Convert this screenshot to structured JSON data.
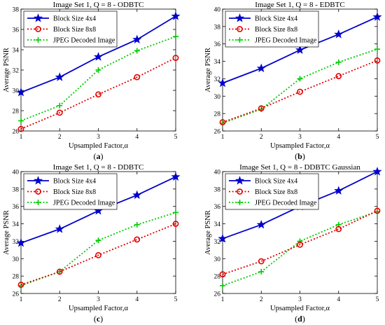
{
  "chart_data": [
    {
      "type": "line",
      "title": "Image Set 1, Q = 8 - ODBTC",
      "xlabel": "Upsampled Factor,α",
      "ylabel": "Average PSNR",
      "x": [
        1,
        2,
        3,
        4,
        5
      ],
      "xlim": [
        1,
        5
      ],
      "ylim": [
        26,
        38
      ],
      "yticks": [
        26,
        28,
        30,
        32,
        34,
        36,
        38
      ],
      "series": [
        {
          "name": "Block Size 4x4",
          "values": [
            29.8,
            31.3,
            33.3,
            35.0,
            37.3
          ]
        },
        {
          "name": "Block Size 8x8",
          "values": [
            26.2,
            27.8,
            29.6,
            31.3,
            33.2
          ]
        },
        {
          "name": "JPEG Decoded Image",
          "values": [
            27.0,
            28.5,
            32.0,
            33.9,
            35.3
          ]
        }
      ],
      "panel_label": "a"
    },
    {
      "type": "line",
      "title": "Image Set 1, Q = 8 - EDBTC",
      "xlabel": "Upsampled Factor,α",
      "ylabel": "Average PSNR",
      "x": [
        1,
        2,
        3,
        4,
        5
      ],
      "xlim": [
        1,
        5
      ],
      "ylim": [
        26,
        40
      ],
      "yticks": [
        26,
        28,
        30,
        32,
        34,
        36,
        38,
        40
      ],
      "series": [
        {
          "name": "Block Size 4x4",
          "values": [
            31.5,
            33.2,
            35.3,
            37.1,
            39.1
          ]
        },
        {
          "name": "Block Size 8x8",
          "values": [
            27.0,
            28.6,
            30.5,
            32.3,
            34.1
          ]
        },
        {
          "name": "JPEG Decoded Image",
          "values": [
            26.9,
            28.5,
            32.0,
            33.9,
            35.4
          ]
        }
      ],
      "panel_label": "b"
    },
    {
      "type": "line",
      "title": "Image Set 1, Q = 8 - DDBTC",
      "xlabel": "Upsampled Factor,α",
      "ylabel": "Average PSNR",
      "x": [
        1,
        2,
        3,
        4,
        5
      ],
      "xlim": [
        1,
        5
      ],
      "ylim": [
        26,
        40
      ],
      "yticks": [
        26,
        28,
        30,
        32,
        34,
        36,
        38,
        40
      ],
      "series": [
        {
          "name": "Block Size 4x4",
          "values": [
            31.8,
            33.4,
            35.5,
            37.3,
            39.4
          ]
        },
        {
          "name": "Block Size 8x8",
          "values": [
            27.0,
            28.5,
            30.4,
            32.2,
            34.0
          ]
        },
        {
          "name": "JPEG Decoded Image",
          "values": [
            26.9,
            28.5,
            32.1,
            33.9,
            35.3
          ]
        }
      ],
      "panel_label": "c"
    },
    {
      "type": "line",
      "title": "Image Set 1, Q = 8 - DDBTC Gaussian",
      "xlabel": "Upsampled Factor,α",
      "ylabel": "Average PSNR",
      "x": [
        1,
        2,
        3,
        4,
        5
      ],
      "xlim": [
        1,
        5
      ],
      "ylim": [
        26,
        40
      ],
      "yticks": [
        26,
        28,
        30,
        32,
        34,
        36,
        38,
        40
      ],
      "series": [
        {
          "name": "Block Size 4x4",
          "values": [
            32.3,
            33.9,
            36.0,
            37.8,
            40.0
          ]
        },
        {
          "name": "Block Size 8x8",
          "values": [
            28.2,
            29.7,
            31.6,
            33.4,
            35.5
          ]
        },
        {
          "name": "JPEG Decoded Image",
          "values": [
            26.9,
            28.5,
            32.0,
            33.9,
            35.4
          ]
        }
      ],
      "panel_label": "d"
    }
  ],
  "series_style": [
    {
      "color": "#0000cc",
      "marker": "star",
      "dash": "solid"
    },
    {
      "color": "#e60000",
      "marker": "circle",
      "dash": "dotted"
    },
    {
      "color": "#00cc00",
      "marker": "plus",
      "dash": "dotted"
    }
  ],
  "legend_placement": "top-left",
  "grid": false
}
